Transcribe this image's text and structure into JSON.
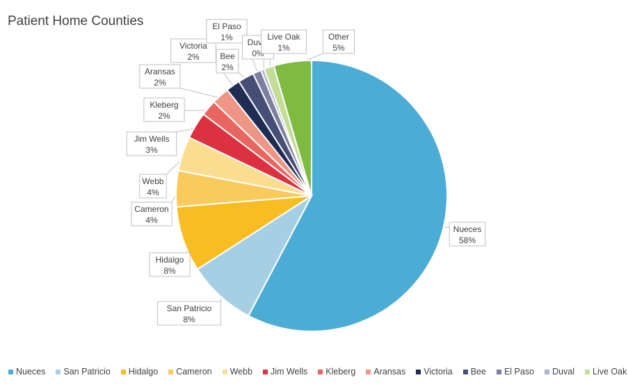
{
  "chart_data": {
    "type": "pie",
    "title": "Patient Home Counties",
    "legend_position": "bottom",
    "start_angle": "top, clockwise",
    "categories": [
      "Nueces",
      "San Patricio",
      "Hidalgo",
      "Cameron",
      "Webb",
      "Jim Wells",
      "Kleberg",
      "Aransas",
      "Victoria",
      "Bee",
      "El Paso",
      "Duval",
      "Live Oak",
      "Other"
    ],
    "values": [
      57.7,
      8.2,
      7.8,
      4.3,
      4.1,
      3.2,
      1.9,
      2.1,
      1.7,
      1.9,
      1.0,
      0.4,
      1.2,
      4.5
    ],
    "data_labels": [
      "58%",
      "8%",
      "8%",
      "4%",
      "4%",
      "3%",
      "2%",
      "2%",
      "2%",
      "2%",
      "1%",
      "0%",
      "1%",
      "5%"
    ],
    "colors": [
      "#4BACD6",
      "#A6CFE3",
      "#F7BD22",
      "#F9CB5C",
      "#FBDD92",
      "#DC3140",
      "#E8665F",
      "#EE9585",
      "#1F2D52",
      "#474E75",
      "#7D7F9E",
      "#B2B4CB",
      "#C3DC96",
      "#7FBA41"
    ]
  }
}
